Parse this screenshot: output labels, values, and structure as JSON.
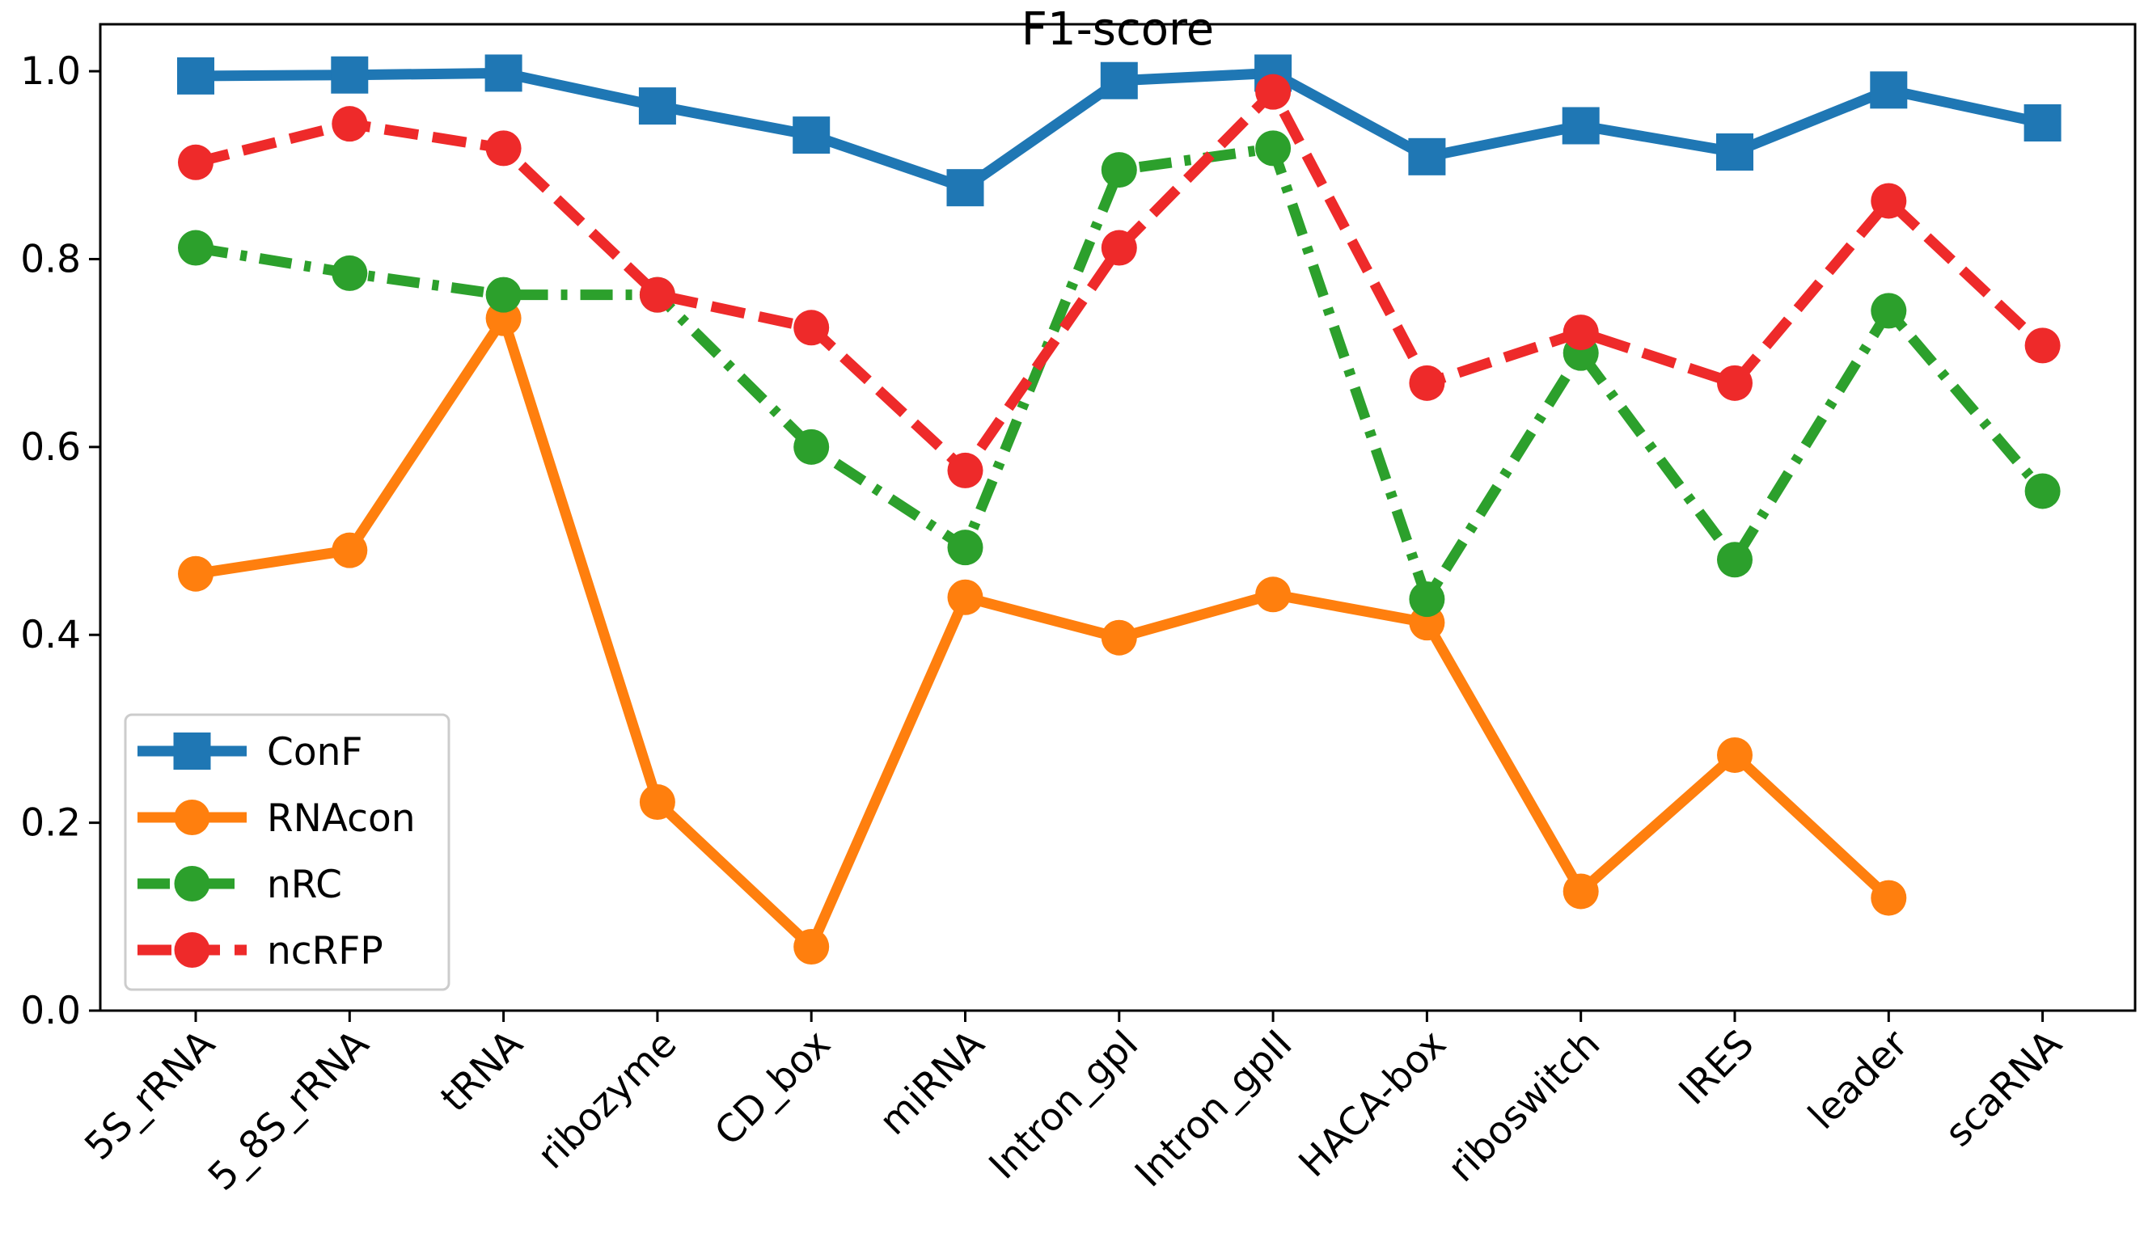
{
  "chart_data": {
    "type": "line",
    "title": "F1-score",
    "xlabel": "",
    "ylabel": "",
    "categories": [
      "5S_rRNA",
      "5_8S_rRNA",
      "tRNA",
      "ribozyme",
      "CD_box",
      "miRNA",
      "Intron_gpI",
      "Intron_gpII",
      "HACA-box",
      "riboswitch",
      "IRES",
      "leader",
      "scaRNA"
    ],
    "ylim": [
      0.0,
      1.05
    ],
    "yticks": [
      "0.0",
      "0.2",
      "0.4",
      "0.6",
      "0.8",
      "1.0"
    ],
    "grid": false,
    "legend_position": "lower-left",
    "series": [
      {
        "name": "ConF",
        "color": "#1f77b4",
        "marker": "square",
        "linestyle": "solid",
        "values": [
          0.995,
          0.996,
          0.998,
          0.963,
          0.932,
          0.876,
          0.99,
          0.998,
          0.909,
          0.942,
          0.914,
          0.98,
          0.945
        ]
      },
      {
        "name": "RNAcon",
        "color": "#ff7f0e",
        "marker": "circle",
        "linestyle": "solid",
        "values": [
          0.465,
          0.49,
          0.737,
          0.222,
          0.068,
          0.44,
          0.397,
          0.443,
          0.413,
          0.127,
          0.272,
          0.12,
          null
        ]
      },
      {
        "name": "nRC",
        "color": "#2ca02c",
        "marker": "circle",
        "linestyle": "dashdot",
        "values": [
          0.812,
          0.785,
          0.762,
          0.762,
          0.6,
          0.493,
          0.895,
          0.918,
          0.438,
          0.7,
          0.48,
          0.745,
          0.553
        ]
      },
      {
        "name": "ncRFP",
        "color": "#ee2a2a",
        "marker": "circle",
        "linestyle": "dashed",
        "values": [
          0.903,
          0.944,
          0.918,
          0.762,
          0.727,
          0.575,
          0.812,
          0.978,
          0.668,
          0.722,
          0.668,
          0.862,
          0.708
        ]
      }
    ]
  }
}
